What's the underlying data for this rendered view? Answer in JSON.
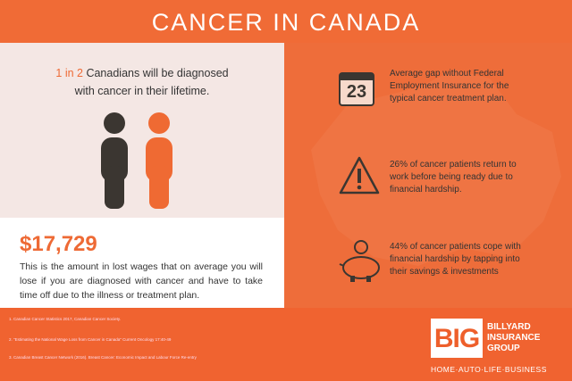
{
  "header": {
    "title": "CANCER IN CANADA"
  },
  "left": {
    "highlight": "1 in 2",
    "statement": " Canadians will be diagnosed with cancer in their lifetime.",
    "amount": "$17,729",
    "amount_text": "This is the amount in lost wages that on average you will lose if you are diagnosed with  cancer and have to take time off due to the illness or treatment plan."
  },
  "right": {
    "items": [
      {
        "icon_text": "23",
        "text": "Average gap without Federal Employment Insurance for the typical cancer treatment plan."
      },
      {
        "text": "26% of cancer patients return to work before being ready due to financial hardship."
      },
      {
        "text": "44% of cancer patients cope with financial hardship by tapping into their savings & investments"
      }
    ]
  },
  "footer": {
    "notes": [
      "1. Canadian Cancer Statistics 2017, Canadian Cancer Society.",
      "2. \"Estimating the National Wage Loss from Cancer in Canada\" Current Oncology 17:40-49",
      "3. Canadian Breast Cancer Network (2016). Breast Cancer: Economic Impact and Labour Force Re-entry"
    ],
    "logo": {
      "mark": "BIG",
      "lines": [
        "BILLYARD",
        "INSURANCE",
        "GROUP"
      ],
      "tagline": "HOME·AUTO·LIFE·BUSINESS"
    }
  }
}
